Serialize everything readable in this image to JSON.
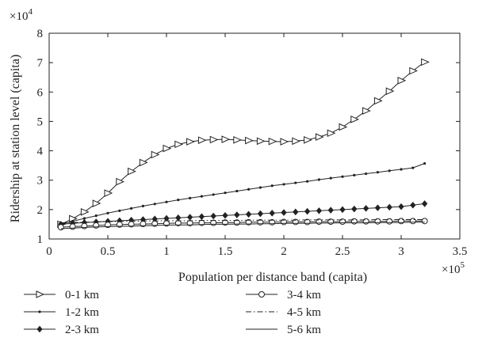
{
  "chart_data": {
    "type": "line",
    "title": "",
    "xlabel": "Population per distance band (capita)",
    "ylabel": "Ridership at station level (capita)",
    "x_multiplier": "×10",
    "x_multiplier_exp": "5",
    "y_multiplier": "×10",
    "y_multiplier_exp": "4",
    "xlim": [
      0,
      3.5
    ],
    "ylim": [
      1,
      8
    ],
    "xticks": [
      "0",
      "0.5",
      "1",
      "1.5",
      "2",
      "2.5",
      "3",
      "3.5"
    ],
    "yticks": [
      "1",
      "2",
      "3",
      "4",
      "5",
      "6",
      "7",
      "8"
    ],
    "grid": false,
    "legend_position": "bottom",
    "x": [
      0.1,
      0.2,
      0.3,
      0.4,
      0.5,
      0.6,
      0.7,
      0.8,
      0.9,
      1.0,
      1.1,
      1.2,
      1.3,
      1.4,
      1.5,
      1.6,
      1.7,
      1.8,
      1.9,
      2.0,
      2.1,
      2.2,
      2.3,
      2.4,
      2.5,
      2.6,
      2.7,
      2.8,
      2.9,
      3.0,
      3.1,
      3.2
    ],
    "series": [
      {
        "name": "0-1 km",
        "marker": "triangle-right",
        "line": "solid",
        "values": [
          1.5,
          1.69,
          1.92,
          2.21,
          2.56,
          2.95,
          3.3,
          3.6,
          3.87,
          4.08,
          4.22,
          4.31,
          4.36,
          4.38,
          4.39,
          4.37,
          4.35,
          4.33,
          4.32,
          4.31,
          4.33,
          4.37,
          4.47,
          4.6,
          4.81,
          5.07,
          5.36,
          5.7,
          6.03,
          6.39,
          6.72,
          7.02
        ]
      },
      {
        "name": "1-2 km",
        "marker": "dot",
        "line": "solid",
        "values": [
          1.5,
          1.6,
          1.7,
          1.79,
          1.88,
          1.96,
          2.04,
          2.12,
          2.19,
          2.26,
          2.33,
          2.39,
          2.45,
          2.51,
          2.57,
          2.63,
          2.69,
          2.75,
          2.81,
          2.86,
          2.91,
          2.96,
          3.02,
          3.07,
          3.12,
          3.17,
          3.22,
          3.27,
          3.32,
          3.37,
          3.42,
          3.57
        ]
      },
      {
        "name": "2-3 km",
        "marker": "diamond",
        "line": "solid",
        "values": [
          1.5,
          1.53,
          1.56,
          1.58,
          1.6,
          1.62,
          1.64,
          1.66,
          1.68,
          1.7,
          1.72,
          1.74,
          1.76,
          1.78,
          1.8,
          1.82,
          1.84,
          1.86,
          1.88,
          1.9,
          1.92,
          1.94,
          1.96,
          1.98,
          2.0,
          2.02,
          2.04,
          2.06,
          2.08,
          2.1,
          2.15,
          2.2
        ]
      },
      {
        "name": "3-4 km",
        "marker": "circle",
        "line": "solid",
        "values": [
          1.4,
          1.42,
          1.44,
          1.46,
          1.48,
          1.49,
          1.5,
          1.51,
          1.52,
          1.53,
          1.54,
          1.54,
          1.55,
          1.55,
          1.56,
          1.56,
          1.57,
          1.57,
          1.57,
          1.58,
          1.58,
          1.58,
          1.59,
          1.59,
          1.59,
          1.6,
          1.6,
          1.6,
          1.6,
          1.61,
          1.61,
          1.61
        ]
      },
      {
        "name": "4-5 km",
        "marker": "none",
        "line": "dashdot",
        "values": [
          1.55,
          1.56,
          1.57,
          1.58,
          1.59,
          1.6,
          1.6,
          1.61,
          1.61,
          1.62,
          1.62,
          1.62,
          1.63,
          1.63,
          1.63,
          1.63,
          1.64,
          1.64,
          1.64,
          1.64,
          1.64,
          1.65,
          1.65,
          1.65,
          1.65,
          1.65,
          1.65,
          1.66,
          1.66,
          1.66,
          1.66,
          1.66
        ]
      },
      {
        "name": "5-6 km",
        "marker": "none",
        "line": "solid",
        "values": [
          1.35,
          1.37,
          1.39,
          1.41,
          1.42,
          1.43,
          1.44,
          1.45,
          1.46,
          1.47,
          1.48,
          1.48,
          1.49,
          1.5,
          1.5,
          1.51,
          1.51,
          1.52,
          1.52,
          1.53,
          1.53,
          1.53,
          1.54,
          1.54,
          1.55,
          1.55,
          1.55,
          1.56,
          1.56,
          1.56,
          1.57,
          1.57
        ]
      }
    ],
    "colors": {
      "axis": "#222222",
      "line": "#222222"
    }
  }
}
